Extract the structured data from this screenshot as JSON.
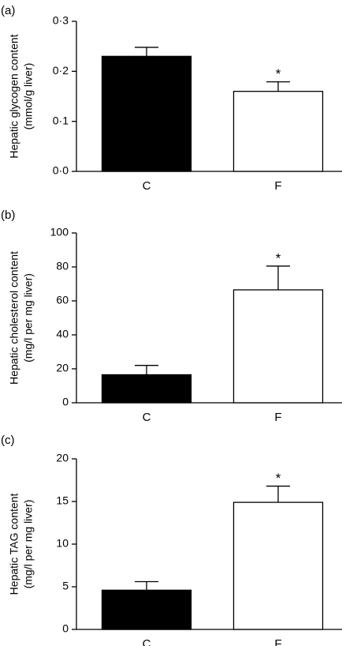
{
  "chart_data": [
    {
      "panel_label": "(a)",
      "type": "bar",
      "categories": [
        "C",
        "F"
      ],
      "values": [
        0.23,
        0.16
      ],
      "errors": [
        0.018,
        0.019
      ],
      "significance": [
        "",
        "*"
      ],
      "bar_colors": [
        "#000000",
        "#ffffff"
      ],
      "ylabel_lines": [
        "Hepatic glycogen content",
        "(mmol/g liver)"
      ],
      "ylim": [
        0,
        0.3
      ],
      "yticks": [
        0,
        0.1,
        0.2,
        0.3
      ],
      "ytick_labels": [
        "0·0",
        "0·1",
        "0·2",
        "0·3"
      ],
      "grid": false
    },
    {
      "panel_label": "(b)",
      "type": "bar",
      "categories": [
        "C",
        "F"
      ],
      "values": [
        16.5,
        66.5
      ],
      "errors": [
        5.5,
        14
      ],
      "significance": [
        "",
        "*"
      ],
      "bar_colors": [
        "#000000",
        "#ffffff"
      ],
      "ylabel_lines": [
        "Hepatic cholesterol content",
        "(mg/l per mg liver)"
      ],
      "ylim": [
        0,
        100
      ],
      "yticks": [
        0,
        20,
        40,
        60,
        80,
        100
      ],
      "ytick_labels": [
        "0",
        "20",
        "40",
        "60",
        "80",
        "100"
      ],
      "grid": false
    },
    {
      "panel_label": "(c)",
      "type": "bar",
      "categories": [
        "C",
        "F"
      ],
      "values": [
        4.6,
        14.9
      ],
      "errors": [
        1.0,
        1.9
      ],
      "significance": [
        "",
        "*"
      ],
      "bar_colors": [
        "#000000",
        "#ffffff"
      ],
      "ylabel_lines": [
        "Hepatic TAG content",
        "(mg/l per mg liver)"
      ],
      "ylim": [
        0,
        20
      ],
      "yticks": [
        0,
        5,
        10,
        15,
        20
      ],
      "ytick_labels": [
        "0",
        "5",
        "10",
        "15",
        "20"
      ],
      "grid": false
    }
  ]
}
